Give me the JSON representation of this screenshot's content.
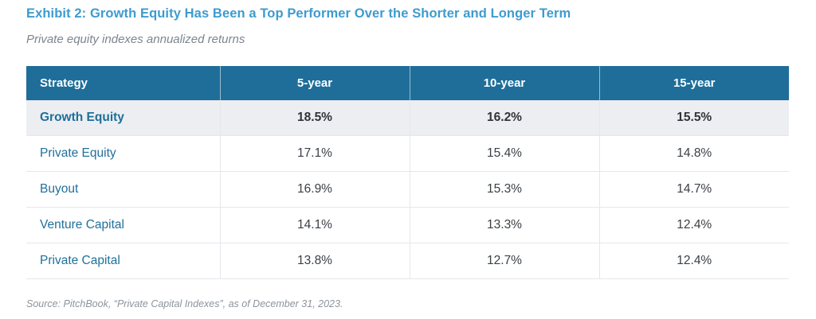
{
  "chart_data": {
    "type": "table",
    "title": "Exhibit 2: Growth Equity Has Been a Top Performer Over the Shorter and Longer Term",
    "subtitle": "Private equity indexes annualized returns",
    "columns": [
      "Strategy",
      "5-year",
      "10-year",
      "15-year"
    ],
    "rows": [
      {
        "strategy": "Growth Equity",
        "values": [
          "18.5%",
          "16.2%",
          "15.5%"
        ],
        "highlighted": true
      },
      {
        "strategy": "Private Equity",
        "values": [
          "17.1%",
          "15.4%",
          "14.8%"
        ],
        "highlighted": false
      },
      {
        "strategy": "Buyout",
        "values": [
          "16.9%",
          "15.3%",
          "14.7%"
        ],
        "highlighted": false
      },
      {
        "strategy": "Venture Capital",
        "values": [
          "14.1%",
          "13.3%",
          "12.4%"
        ],
        "highlighted": false
      },
      {
        "strategy": "Private Capital",
        "values": [
          "13.8%",
          "12.7%",
          "12.4%"
        ],
        "highlighted": false
      }
    ],
    "source": "Source: PitchBook, “Private Capital Indexes”, as of December 31, 2023.",
    "layout": {
      "legend": "none",
      "grid": "row-and-column-borders",
      "highlight_row": "Growth Equity"
    },
    "colors": {
      "title_accent": "#3d9bd0",
      "header_bg": "#1f6e99",
      "header_text": "#ffffff",
      "row_label": "#20709b",
      "highlight_row_bg": "#eceef2",
      "body_text": "#3a4046",
      "border": "#e4e7eb",
      "muted_text": "#8c949c"
    }
  }
}
